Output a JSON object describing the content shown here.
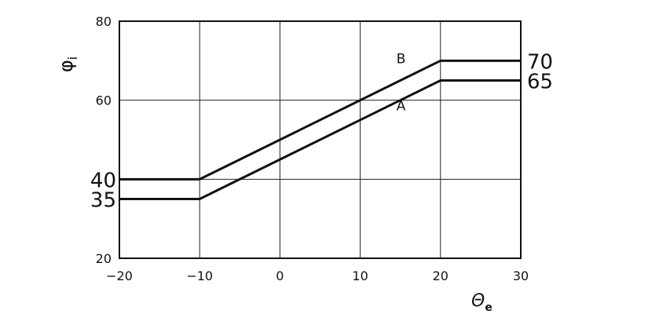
{
  "chart_data": {
    "type": "line",
    "title": "",
    "xlabel": "Θ",
    "xlabel_sub": "e",
    "ylabel": "φ",
    "ylabel_sub": "i",
    "xlim": [
      -20,
      30
    ],
    "ylim": [
      20,
      80
    ],
    "grid": true,
    "x_ticks": [
      -20,
      -10,
      0,
      10,
      20,
      30
    ],
    "x_tick_labels": [
      "−20",
      "−10",
      "0",
      "10",
      "20",
      "30"
    ],
    "y_ticks": [
      20,
      60,
      80
    ],
    "y_tick_labels": [
      "20",
      "60",
      "80"
    ],
    "y_grid": [
      20,
      40,
      60,
      80
    ],
    "annotations_left": [
      {
        "y": 40,
        "text": "40"
      },
      {
        "y": 35,
        "text": "35"
      }
    ],
    "annotations_right": [
      {
        "y": 70,
        "text": "70"
      },
      {
        "y": 65,
        "text": "65"
      }
    ],
    "line_color": "#111111",
    "series": [
      {
        "name": "A",
        "x": [
          -20,
          -10,
          20,
          30
        ],
        "y": [
          35,
          35,
          65,
          65
        ],
        "label_at": [
          15,
          59
        ]
      },
      {
        "name": "B",
        "x": [
          -20,
          -10,
          20,
          30
        ],
        "y": [
          40,
          40,
          70,
          70
        ],
        "label_at": [
          15,
          71
        ]
      }
    ]
  }
}
